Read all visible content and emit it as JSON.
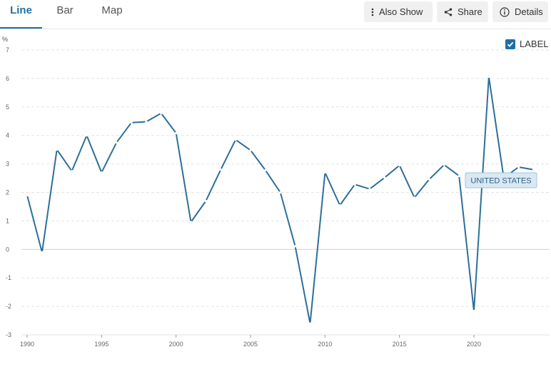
{
  "tabs": [
    {
      "label": "Line",
      "active": true
    },
    {
      "label": "Bar",
      "active": false
    },
    {
      "label": "Map",
      "active": false
    }
  ],
  "toolbar": {
    "also_show": "Also Show",
    "share": "Share",
    "details": "Details"
  },
  "label_toggle": {
    "label": "LABEL",
    "checked": true
  },
  "colors": {
    "line": "#2d6f99",
    "accent": "#1f6fa5",
    "label_bg": "#d9e8f3"
  },
  "chart_data": {
    "type": "line",
    "ylabel": "%",
    "ylim": [
      -3,
      7
    ],
    "yticks": [
      "7",
      "6",
      "5",
      "4",
      "3",
      "2",
      "1",
      "0",
      "-1",
      "-2",
      "-3"
    ],
    "xticks": [
      "1990",
      "1995",
      "2000",
      "2005",
      "2010",
      "2015",
      "2020"
    ],
    "grid": true,
    "series": [
      {
        "name": "UNITED STATES",
        "x": [
          1990,
          1991,
          1992,
          1993,
          1994,
          1995,
          1996,
          1997,
          1998,
          1999,
          2000,
          2001,
          2002,
          2003,
          2004,
          2005,
          2006,
          2007,
          2008,
          2009,
          2010,
          2011,
          2012,
          2013,
          2014,
          2015,
          2016,
          2017,
          2018,
          2019,
          2020,
          2021,
          2022,
          2023,
          2024
        ],
        "values": [
          1.9,
          -0.1,
          3.5,
          2.75,
          4.0,
          2.7,
          3.75,
          4.45,
          4.48,
          4.78,
          4.08,
          0.96,
          1.7,
          2.8,
          3.85,
          3.48,
          2.78,
          2.0,
          0.11,
          -2.6,
          2.7,
          1.55,
          2.28,
          2.12,
          2.52,
          2.95,
          1.82,
          2.46,
          2.97,
          2.58,
          -2.16,
          6.06,
          2.51,
          2.89,
          2.8
        ]
      }
    ]
  }
}
